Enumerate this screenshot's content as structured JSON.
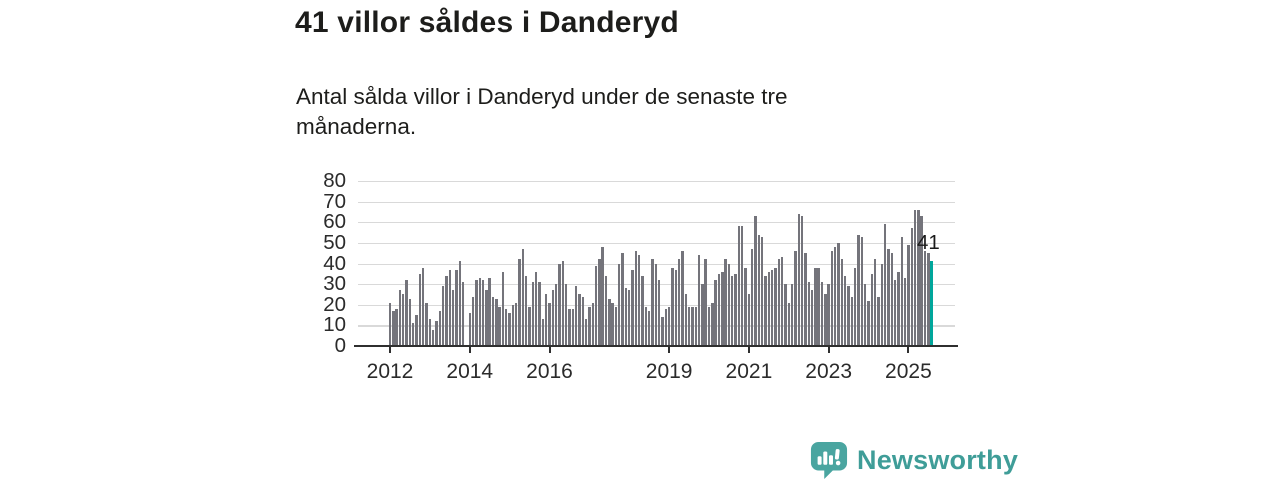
{
  "page": {
    "title": "41 villor såldes i Danderyd",
    "subtitle": "Antal sålda villor i Danderyd under de senaste tre månaderna."
  },
  "branding": {
    "name": "Newsworthy",
    "logo_color": "#4aa5a0",
    "text_color": "#3f9d98"
  },
  "chart_data": {
    "type": "bar",
    "title": "41 villor såldes i Danderyd",
    "subtitle": "Antal sålda villor i Danderyd under de senaste tre månaderna.",
    "x_start": "2012-01",
    "x_end": "2025-08",
    "values": [
      21,
      17,
      18,
      27,
      25,
      32,
      23,
      11,
      15,
      35,
      38,
      21,
      13,
      8,
      12,
      17,
      29,
      34,
      37,
      27,
      37,
      41,
      31,
      0,
      16,
      24,
      32,
      33,
      32,
      27,
      33,
      24,
      23,
      19,
      36,
      18,
      16,
      20,
      21,
      42,
      47,
      34,
      19,
      31,
      36,
      31,
      13,
      25,
      21,
      27,
      30,
      40,
      41,
      30,
      18,
      18,
      29,
      25,
      24,
      13,
      19,
      21,
      39,
      42,
      48,
      34,
      23,
      21,
      19,
      40,
      45,
      28,
      27,
      37,
      46,
      44,
      34,
      19,
      17,
      42,
      40,
      32,
      14,
      18,
      19,
      38,
      37,
      42,
      46,
      25,
      19,
      19,
      19,
      44,
      30,
      42,
      19,
      21,
      32,
      35,
      36,
      42,
      40,
      34,
      35,
      58,
      58,
      38,
      25,
      47,
      63,
      54,
      53,
      34,
      36,
      37,
      38,
      42,
      43,
      30,
      21,
      30,
      46,
      64,
      63,
      45,
      31,
      27,
      38,
      38,
      31,
      25,
      30,
      46,
      48,
      50,
      42,
      34,
      29,
      24,
      38,
      54,
      53,
      30,
      22,
      35,
      42,
      24,
      40,
      59,
      47,
      45,
      32,
      36,
      53,
      33,
      49,
      57,
      66,
      66,
      63,
      46,
      45,
      41
    ],
    "ylim": [
      0,
      80
    ],
    "y_ticks": [
      0,
      10,
      20,
      30,
      40,
      50,
      60,
      70,
      80
    ],
    "x_tick_labels": [
      "2012",
      "2014",
      "2016",
      "2019",
      "2021",
      "2023",
      "2025"
    ],
    "x_tick_month_offsets": [
      0,
      24,
      48,
      84,
      108,
      132,
      156
    ],
    "grid": true,
    "legend": "none",
    "bar_color": "#74747b",
    "highlight_last": {
      "value": 41,
      "color": "#00a69b"
    },
    "annotation": "41"
  }
}
